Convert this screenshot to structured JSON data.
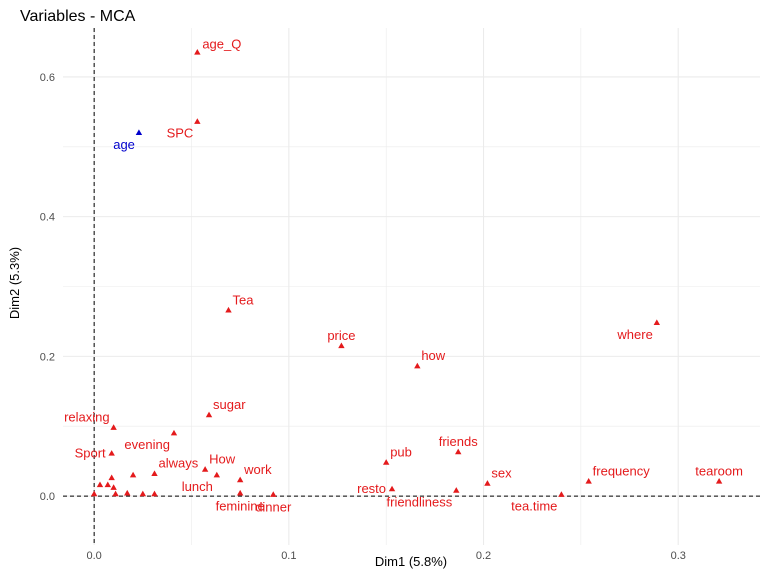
{
  "chart_data": {
    "type": "scatter",
    "title": "Variables - MCA",
    "xlabel": "Dim1 (5.8%)",
    "ylabel": "Dim2 (5.3%)",
    "xlim": [
      -0.016,
      0.342
    ],
    "ylim": [
      -0.07,
      0.67
    ],
    "x_ticks": [
      0.0,
      0.1,
      0.2,
      0.3
    ],
    "x_tick_labels": [
      "0.0",
      "0.1",
      "0.2",
      "0.3"
    ],
    "y_ticks": [
      0.0,
      0.2,
      0.4,
      0.6
    ],
    "y_tick_labels": [
      "0.0",
      "0.2",
      "0.4",
      "0.6"
    ],
    "grid": true,
    "reference_lines": {
      "x": 0,
      "y": 0,
      "style": "dashed"
    },
    "colors": {
      "active": "#e41a1c",
      "supplementary": "#0000cc",
      "grid": "#ebebeb"
    },
    "points": [
      {
        "label": "age_Q",
        "x": 0.053,
        "y": 0.635,
        "group": "active",
        "label_pos": "right"
      },
      {
        "label": "SPC",
        "x": 0.053,
        "y": 0.536,
        "group": "active",
        "label_pos": "below-left"
      },
      {
        "label": "age",
        "x": 0.023,
        "y": 0.52,
        "group": "supplementary",
        "label_pos": "below-left"
      },
      {
        "label": "Tea",
        "x": 0.069,
        "y": 0.266,
        "group": "active",
        "label_pos": "above-right"
      },
      {
        "label": "price",
        "x": 0.127,
        "y": 0.215,
        "group": "active",
        "label_pos": "above"
      },
      {
        "label": "how",
        "x": 0.166,
        "y": 0.186,
        "group": "active",
        "label_pos": "above-right"
      },
      {
        "label": "where",
        "x": 0.289,
        "y": 0.248,
        "group": "active",
        "label_pos": "below-left"
      },
      {
        "label": "sugar",
        "x": 0.059,
        "y": 0.116,
        "group": "active",
        "label_pos": "above-right"
      },
      {
        "label": "relaxing",
        "x": 0.01,
        "y": 0.098,
        "group": "active",
        "label_pos": "above-left"
      },
      {
        "label": "evening",
        "x": 0.041,
        "y": 0.09,
        "group": "active",
        "label_pos": "below-left"
      },
      {
        "label": "Sport",
        "x": 0.009,
        "y": 0.061,
        "group": "active",
        "label_pos": "left"
      },
      {
        "label": "always",
        "x": 0.031,
        "y": 0.032,
        "group": "active",
        "label_pos": "above-right"
      },
      {
        "label": "How",
        "x": 0.057,
        "y": 0.038,
        "group": "active",
        "label_pos": "above-right"
      },
      {
        "label": "work",
        "x": 0.075,
        "y": 0.023,
        "group": "active",
        "label_pos": "above-right"
      },
      {
        "label": "lunch",
        "x": 0.063,
        "y": 0.03,
        "group": "active",
        "label_pos": "below-left"
      },
      {
        "label": "feminine",
        "x": 0.075,
        "y": 0.004,
        "group": "active",
        "label_pos": "below"
      },
      {
        "label": "dinner",
        "x": 0.092,
        "y": 0.002,
        "group": "active",
        "label_pos": "below"
      },
      {
        "label": "pub",
        "x": 0.15,
        "y": 0.048,
        "group": "active",
        "label_pos": "above-right"
      },
      {
        "label": "resto",
        "x": 0.153,
        "y": 0.01,
        "group": "active",
        "label_pos": "left"
      },
      {
        "label": "friends",
        "x": 0.187,
        "y": 0.063,
        "group": "active",
        "label_pos": "above"
      },
      {
        "label": "friendliness",
        "x": 0.186,
        "y": 0.008,
        "group": "active",
        "label_pos": "below-left"
      },
      {
        "label": "sex",
        "x": 0.202,
        "y": 0.018,
        "group": "active",
        "label_pos": "above-right"
      },
      {
        "label": "tea.time",
        "x": 0.24,
        "y": 0.002,
        "group": "active",
        "label_pos": "below-left"
      },
      {
        "label": "frequency",
        "x": 0.254,
        "y": 0.021,
        "group": "active",
        "label_pos": "above-right"
      },
      {
        "label": "tearoom",
        "x": 0.321,
        "y": 0.021,
        "group": "active",
        "label_pos": "above"
      },
      {
        "label": "",
        "x": 0.0,
        "y": 0.003,
        "group": "active"
      },
      {
        "label": "",
        "x": 0.003,
        "y": 0.016,
        "group": "active"
      },
      {
        "label": "",
        "x": 0.007,
        "y": 0.016,
        "group": "active"
      },
      {
        "label": "",
        "x": 0.009,
        "y": 0.026,
        "group": "active"
      },
      {
        "label": "",
        "x": 0.01,
        "y": 0.012,
        "group": "active"
      },
      {
        "label": "",
        "x": 0.011,
        "y": 0.003,
        "group": "active"
      },
      {
        "label": "",
        "x": 0.017,
        "y": 0.004,
        "group": "active"
      },
      {
        "label": "",
        "x": 0.02,
        "y": 0.03,
        "group": "active"
      },
      {
        "label": "",
        "x": 0.025,
        "y": 0.003,
        "group": "active"
      },
      {
        "label": "",
        "x": 0.031,
        "y": 0.003,
        "group": "active"
      }
    ]
  }
}
